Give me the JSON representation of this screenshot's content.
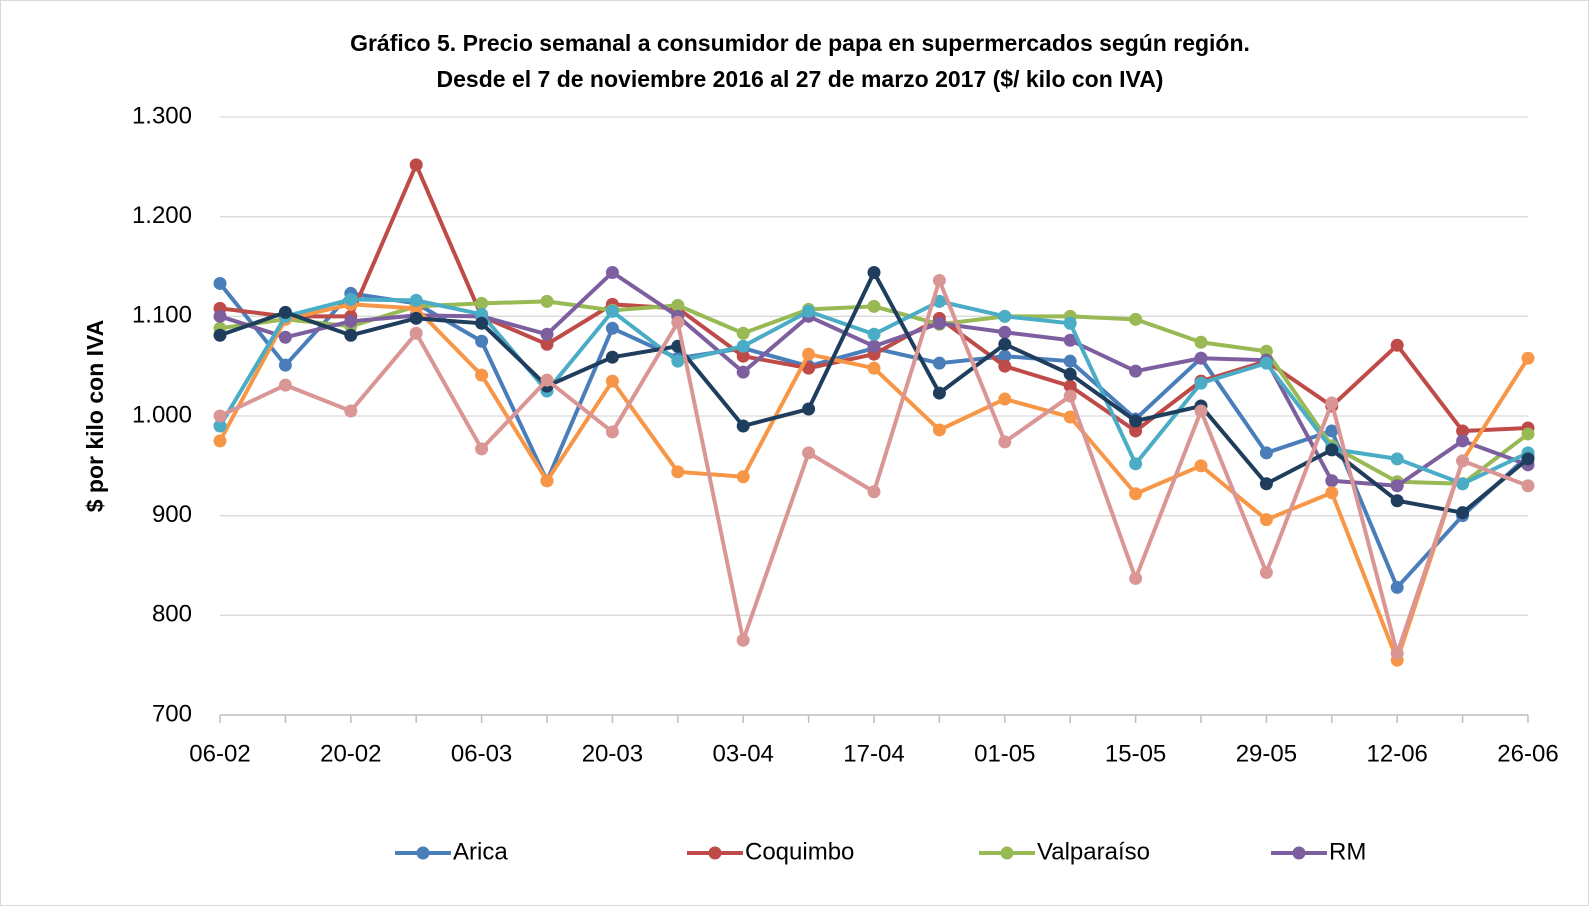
{
  "chart_data": {
    "type": "line",
    "title": "Gráfico 5. Precio semanal a consumidor de papa en supermercados según región.",
    "subtitle": "Desde el 7 de noviembre 2016 al 27 de marzo 2017 ($/ kilo con IVA)",
    "y_label": "$ por kilo con IVA",
    "categories": [
      "06-02",
      null,
      "20-02",
      null,
      "06-03",
      null,
      "20-03",
      null,
      "03-04",
      null,
      "17-04",
      null,
      "01-05",
      null,
      "15-05",
      null,
      "29-05",
      null,
      "12-06",
      null,
      "26-06"
    ],
    "ylim": [
      700,
      1300
    ],
    "yticks": [
      700,
      800,
      900,
      {
        "value": 1000,
        "label": "1.000"
      },
      {
        "value": 1100,
        "label": "1.100"
      },
      {
        "value": 1200,
        "label": "1.200"
      },
      {
        "value": 1300,
        "label": "1.300"
      }
    ],
    "grid": true,
    "legend": "bottom",
    "series": [
      {
        "name": "Arica",
        "color": "#4a7ebb",
        "values": [
          1133,
          1051,
          1123,
          1113,
          1075,
          935,
          1088,
          1058,
          1068,
          1050,
          1068,
          1053,
          1060,
          1055,
          997,
          1058,
          963,
          985,
          828,
          900,
          960
        ]
      },
      {
        "name": "Coquimbo",
        "color": "#be4b48",
        "values": [
          1108,
          1100,
          1100,
          1252,
          1100,
          1072,
          1112,
          1108,
          1060,
          1048,
          1062,
          1098,
          1050,
          1030,
          985,
          1035,
          1055,
          1010,
          1071,
          985,
          988
        ]
      },
      {
        "name": "Valparaíso",
        "color": "#98b954",
        "values": [
          1088,
          1097,
          1090,
          1110,
          1113,
          1115,
          1106,
          1111,
          1083,
          1107,
          1110,
          1092,
          1100,
          1100,
          1097,
          1074,
          1065,
          970,
          934,
          932,
          982
        ]
      },
      {
        "name": "RM",
        "color": "#7d5fa0",
        "values": [
          1100,
          1079,
          1095,
          1101,
          1100,
          1082,
          1144,
          1100,
          1044,
          1100,
          1070,
          1093,
          1084,
          1076,
          1045,
          1058,
          1056,
          935,
          930,
          975,
          951
        ]
      },
      {
        "color": "#f79646",
        "values": [
          975,
          1097,
          1112,
          1108,
          1041,
          935,
          1035,
          944,
          939,
          1062,
          1048,
          986,
          1017,
          999,
          922,
          950,
          896,
          923,
          755,
          955,
          1058
        ]
      },
      {
        "color": "#4bacc6",
        "values": [
          990,
          1100,
          1117,
          1116,
          1102,
          1025,
          1105,
          1055,
          1070,
          1105,
          1082,
          1115,
          1100,
          1093,
          952,
          1033,
          1053,
          967,
          957,
          932,
          963
        ]
      },
      {
        "color": "#1f3d5c",
        "values": [
          1081,
          1104,
          1081,
          1098,
          1093,
          1030,
          1059,
          1070,
          990,
          1007,
          1144,
          1023,
          1072,
          1042,
          995,
          1010,
          932,
          966,
          915,
          903,
          957
        ]
      },
      {
        "color": "#d99694",
        "values": [
          1000,
          1031,
          1005,
          1083,
          967,
          1036,
          984,
          1094,
          775,
          963,
          924,
          1136,
          974,
          1020,
          837,
          1005,
          843,
          1013,
          762,
          955,
          930
        ]
      }
    ]
  }
}
